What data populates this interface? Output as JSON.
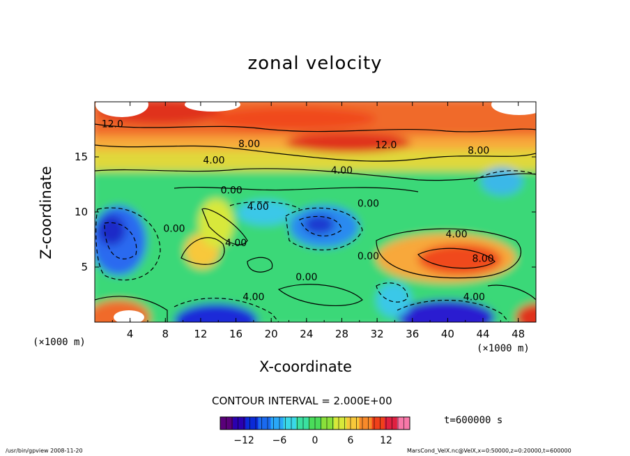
{
  "chart_data": {
    "type": "heatmap",
    "title": "zonal velocity",
    "xlabel": "X-coordinate",
    "ylabel": "Z-coordinate",
    "x_unit": "(×1000 m)",
    "xlim": [
      0,
      50
    ],
    "ylim": [
      0,
      20
    ],
    "x_ticks": [
      4,
      8,
      12,
      16,
      20,
      24,
      28,
      32,
      36,
      40,
      44,
      48
    ],
    "y_ticks": [
      5,
      10,
      15
    ],
    "contour_interval_text": "CONTOUR INTERVAL = 2.000E+00",
    "time_text": "t=600000 s",
    "colorbar": {
      "range": [
        -16,
        16
      ],
      "ticks": [
        -12,
        -6,
        0,
        6,
        12
      ],
      "colors": [
        "#5a007a",
        "#2a00b0",
        "#0a2ad8",
        "#1a6af0",
        "#2aa8f8",
        "#3ad8e8",
        "#3ae0a0",
        "#4adc5a",
        "#8ae03a",
        "#d8e83a",
        "#f8c83a",
        "#f88a2a",
        "#f0401a",
        "#e02040",
        "#f878a8"
      ]
    },
    "contour_labels": [
      {
        "text": "12.0",
        "x": 2.0,
        "z": 18.0
      },
      {
        "text": "8.00",
        "x": 17.5,
        "z": 16.2
      },
      {
        "text": "4.00",
        "x": 13.5,
        "z": 14.7
      },
      {
        "text": "12.0",
        "x": 33.0,
        "z": 16.1
      },
      {
        "text": "8.00",
        "x": 43.5,
        "z": 15.6
      },
      {
        "text": "4.00",
        "x": 28.0,
        "z": 13.8
      },
      {
        "text": "0.00",
        "x": 15.5,
        "z": 12.0
      },
      {
        "text": "4.00",
        "x": 18.5,
        "z": 10.5
      },
      {
        "text": "0.00",
        "x": 31.0,
        "z": 10.8
      },
      {
        "text": "0.00",
        "x": 9.0,
        "z": 8.5
      },
      {
        "text": "4.00",
        "x": 16.0,
        "z": 7.2
      },
      {
        "text": "4.00",
        "x": 41.0,
        "z": 8.0
      },
      {
        "text": "8.00",
        "x": 44.0,
        "z": 5.8
      },
      {
        "text": "0.00",
        "x": 24.0,
        "z": 4.1
      },
      {
        "text": "0.00",
        "x": 31.0,
        "z": 6.0
      },
      {
        "text": "4.00",
        "x": 18.0,
        "z": 2.3
      },
      {
        "text": "4.00",
        "x": 43.0,
        "z": 2.3
      }
    ]
  },
  "footer": {
    "left": "/usr/bin/gpview   2008-11-20",
    "right": "MarsCond_VelX.nc@VelX,x=0:50000,z=0:20000,t=600000"
  }
}
